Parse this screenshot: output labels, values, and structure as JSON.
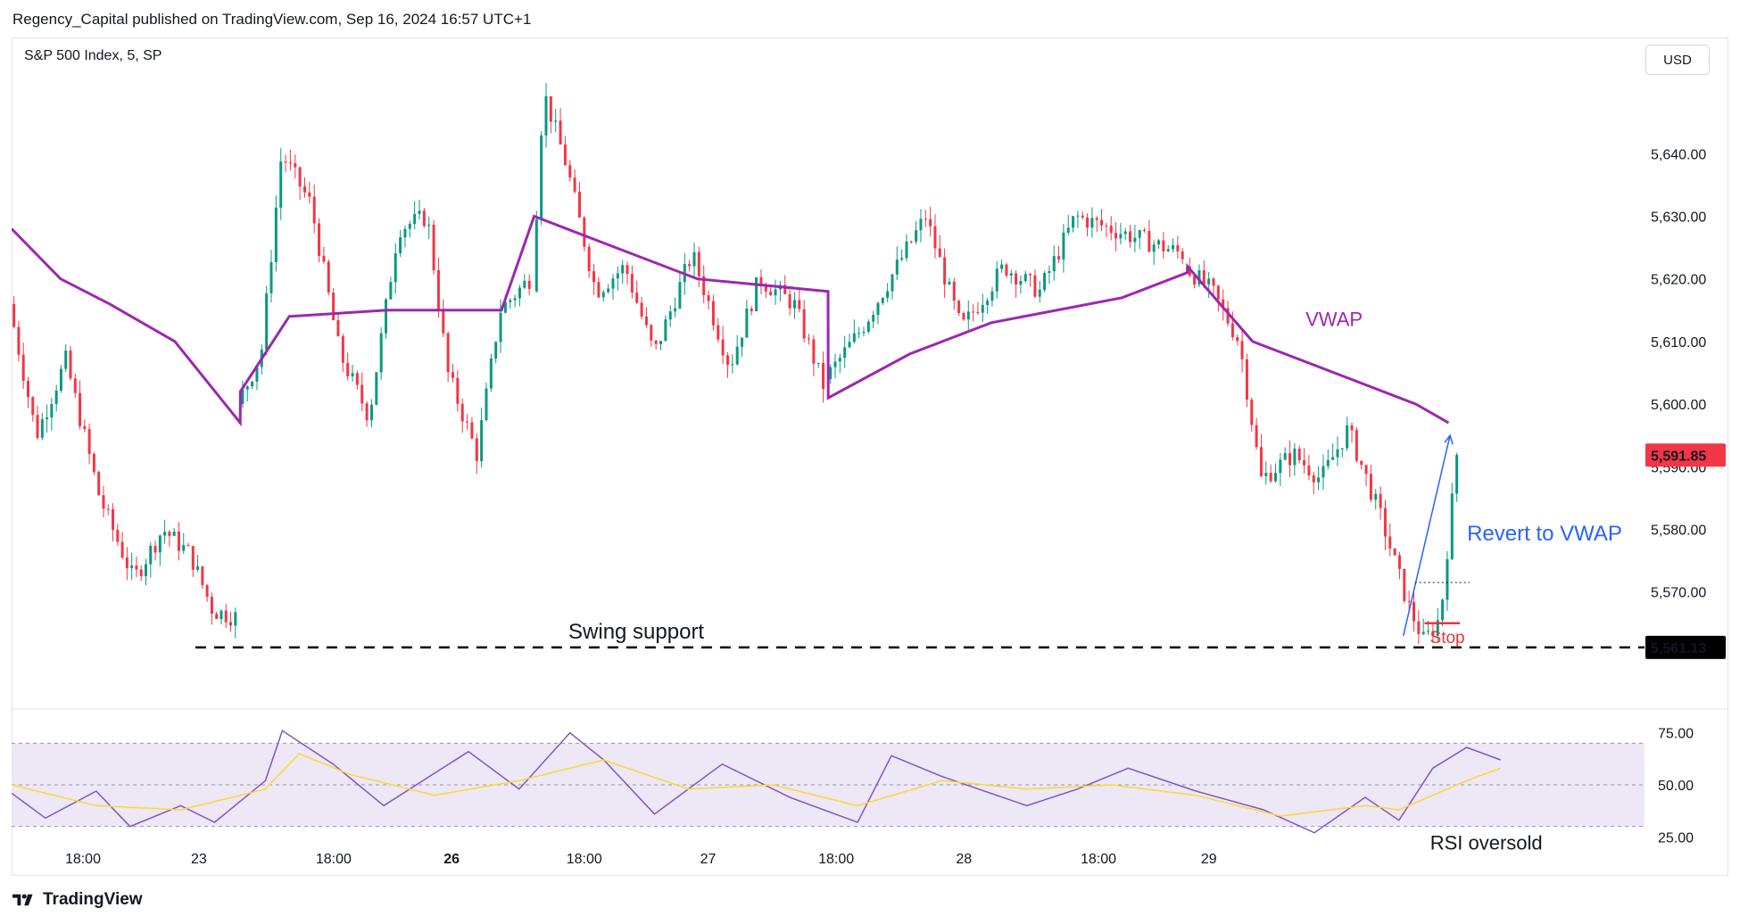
{
  "header": {
    "published": "Regency_Capital published on TradingView.com, Sep 16, 2024 16:57 UTC+1"
  },
  "symbol": {
    "title": "S&P 500 Index, 5, SP"
  },
  "currency_button": "USD",
  "brand": "TradingView",
  "colors": {
    "up": "#089981",
    "down": "#f23645",
    "vwap": "#9c27b0",
    "rsi": "#7e57c2",
    "rsi_ma": "#fdd835",
    "rsi_band": "#ede7f6",
    "revert": "#2962ff",
    "stop": "#e53935",
    "support": "#000000",
    "price_label_bg": "#f23645",
    "support_label_bg": "#000000"
  },
  "chart_data": [
    {
      "type": "candlestick",
      "title": "S&P 500 Index, 5, SP",
      "ylim": [
        5552,
        5656
      ],
      "y_ticks": [
        "5,640.00",
        "5,630.00",
        "5,620.00",
        "5,610.00",
        "5,600.00",
        "5,590.00",
        "5,580.00",
        "5,570.00"
      ],
      "x_ticks": [
        "18:00",
        "23",
        "18:00",
        "26",
        "18:00",
        "27",
        "18:00",
        "28",
        "18:00",
        "29"
      ],
      "x_ticks_bold": [
        false,
        false,
        false,
        true,
        false,
        false,
        false,
        false,
        false,
        false
      ],
      "last_price": "5,591.85",
      "support_level": "5,561.13",
      "vwap_label": "VWAP",
      "annotations": {
        "swing_support": "Swing support",
        "revert_to_vwap": "Revert to VWAP",
        "stop": "Stop"
      },
      "segments": [
        {
          "start": 5616,
          "end": 5566,
          "points": [
            [
              0,
              5616
            ],
            [
              0.12,
              5595
            ],
            [
              0.25,
              5607
            ],
            [
              0.4,
              5585
            ],
            [
              0.55,
              5572
            ],
            [
              0.68,
              5580
            ],
            [
              0.8,
              5576
            ],
            [
              0.9,
              5567
            ],
            [
              1,
              5566
            ]
          ]
        },
        {
          "start": 5600,
          "end": 5622,
          "points": [
            [
              0,
              5600
            ],
            [
              0.08,
              5608
            ],
            [
              0.15,
              5640
            ],
            [
              0.25,
              5632
            ],
            [
              0.35,
              5608
            ],
            [
              0.45,
              5598
            ],
            [
              0.55,
              5628
            ],
            [
              0.65,
              5630
            ],
            [
              0.72,
              5605
            ],
            [
              0.82,
              5592
            ],
            [
              0.9,
              5615
            ],
            [
              1,
              5620
            ]
          ]
        },
        {
          "start": 5618,
          "end": 5603,
          "points": [
            [
              0,
              5618
            ],
            [
              0.04,
              5650
            ],
            [
              0.12,
              5638
            ],
            [
              0.22,
              5618
            ],
            [
              0.32,
              5622
            ],
            [
              0.42,
              5608
            ],
            [
              0.55,
              5624
            ],
            [
              0.68,
              5606
            ],
            [
              0.78,
              5620
            ],
            [
              0.9,
              5616
            ],
            [
              1,
              5603
            ]
          ]
        },
        {
          "start": 5604,
          "end": 5624,
          "points": [
            [
              0,
              5604
            ],
            [
              0.1,
              5612
            ],
            [
              0.2,
              5622
            ],
            [
              0.28,
              5630
            ],
            [
              0.38,
              5612
            ],
            [
              0.5,
              5622
            ],
            [
              0.6,
              5618
            ],
            [
              0.7,
              5630
            ],
            [
              0.8,
              5628
            ],
            [
              0.9,
              5626
            ],
            [
              1,
              5624
            ]
          ]
        },
        {
          "start": 5622,
          "end": 5592,
          "points": [
            [
              0,
              5622
            ],
            [
              0.1,
              5618
            ],
            [
              0.2,
              5610
            ],
            [
              0.28,
              5588
            ],
            [
              0.4,
              5592
            ],
            [
              0.5,
              5588
            ],
            [
              0.6,
              5596
            ],
            [
              0.72,
              5582
            ],
            [
              0.82,
              5568
            ],
            [
              0.88,
              5562
            ],
            [
              0.94,
              5566
            ],
            [
              1,
              5592
            ]
          ]
        }
      ],
      "vwap_points": [
        [
          0,
          5628
        ],
        [
          0.03,
          5620
        ],
        [
          0.06,
          5616
        ],
        [
          0.1,
          5610
        ],
        [
          0.14,
          5597
        ],
        [
          0.1401,
          5602
        ],
        [
          0.17,
          5614
        ],
        [
          0.23,
          5615
        ],
        [
          0.3,
          5615
        ],
        [
          0.32,
          5630
        ],
        [
          0.36,
          5626
        ],
        [
          0.42,
          5620
        ],
        [
          0.5,
          5618
        ],
        [
          0.5001,
          5601
        ],
        [
          0.55,
          5608
        ],
        [
          0.6,
          5613
        ],
        [
          0.68,
          5617
        ],
        [
          0.72,
          5621
        ],
        [
          0.7201,
          5622
        ],
        [
          0.76,
          5610
        ],
        [
          0.82,
          5604
        ],
        [
          0.86,
          5600
        ],
        [
          0.88,
          5597
        ]
      ]
    },
    {
      "type": "line",
      "title": "",
      "ylim": [
        20,
        80
      ],
      "y_ticks": [
        "75.00",
        "50.00",
        "25.00"
      ],
      "band": [
        30,
        70
      ],
      "annotation": "RSI oversold",
      "rsi_points": [
        [
          0,
          46
        ],
        [
          0.02,
          34
        ],
        [
          0.05,
          47
        ],
        [
          0.07,
          30
        ],
        [
          0.1,
          40
        ],
        [
          0.12,
          32
        ],
        [
          0.15,
          52
        ],
        [
          0.16,
          76
        ],
        [
          0.19,
          60
        ],
        [
          0.22,
          40
        ],
        [
          0.27,
          66
        ],
        [
          0.3,
          48
        ],
        [
          0.33,
          75
        ],
        [
          0.35,
          62
        ],
        [
          0.38,
          36
        ],
        [
          0.42,
          60
        ],
        [
          0.46,
          44
        ],
        [
          0.5,
          32
        ],
        [
          0.52,
          64
        ],
        [
          0.55,
          54
        ],
        [
          0.6,
          40
        ],
        [
          0.63,
          48
        ],
        [
          0.66,
          58
        ],
        [
          0.7,
          47
        ],
        [
          0.74,
          38
        ],
        [
          0.77,
          27
        ],
        [
          0.8,
          44
        ],
        [
          0.82,
          33
        ],
        [
          0.84,
          58
        ],
        [
          0.86,
          68
        ],
        [
          0.88,
          62
        ]
      ],
      "rsi_ma_points": [
        [
          0,
          50
        ],
        [
          0.05,
          40
        ],
        [
          0.1,
          38
        ],
        [
          0.15,
          48
        ],
        [
          0.17,
          65
        ],
        [
          0.2,
          55
        ],
        [
          0.25,
          45
        ],
        [
          0.3,
          52
        ],
        [
          0.35,
          62
        ],
        [
          0.4,
          48
        ],
        [
          0.45,
          50
        ],
        [
          0.5,
          40
        ],
        [
          0.55,
          52
        ],
        [
          0.6,
          48
        ],
        [
          0.65,
          50
        ],
        [
          0.7,
          45
        ],
        [
          0.75,
          35
        ],
        [
          0.8,
          40
        ],
        [
          0.82,
          38
        ],
        [
          0.86,
          52
        ],
        [
          0.88,
          58
        ]
      ]
    }
  ]
}
